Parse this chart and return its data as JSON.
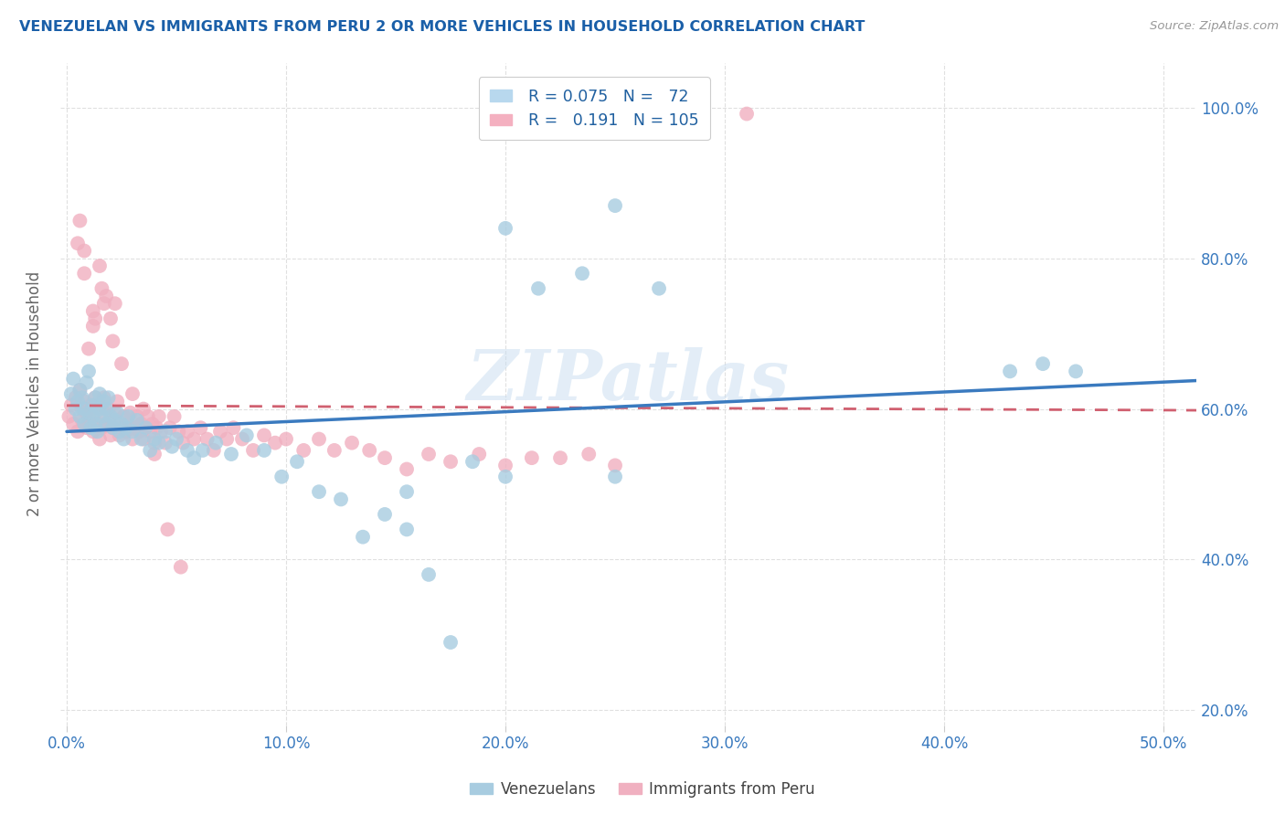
{
  "title": "VENEZUELAN VS IMMIGRANTS FROM PERU 2 OR MORE VEHICLES IN HOUSEHOLD CORRELATION CHART",
  "source": "Source: ZipAtlas.com",
  "ylabel": "2 or more Vehicles in Household",
  "watermark": "ZIPatlas",
  "xlim": [
    -0.003,
    0.515
  ],
  "ylim": [
    0.18,
    1.06
  ],
  "xtick_vals": [
    0.0,
    0.1,
    0.2,
    0.3,
    0.4,
    0.5
  ],
  "xtick_labels": [
    "0.0%",
    "10.0%",
    "20.0%",
    "30.0%",
    "40.0%",
    "50.0%"
  ],
  "ytick_vals": [
    0.2,
    0.4,
    0.6,
    0.8,
    1.0
  ],
  "ytick_labels": [
    "20.0%",
    "40.0%",
    "60.0%",
    "80.0%",
    "100.0%"
  ],
  "R_venezuelan": 0.075,
  "N_venezuelan": 72,
  "R_peru": 0.191,
  "N_peru": 105,
  "blue_scatter_color": "#a8cce0",
  "pink_scatter_color": "#f0b0c0",
  "blue_line_color": "#3a7abf",
  "pink_line_color": "#d06070",
  "title_color": "#1a5fa8",
  "tick_color": "#3a7abf",
  "ylabel_color": "#666666",
  "source_color": "#999999",
  "watermark_color": "#c8ddf0",
  "grid_color": "#e0e0e0",
  "legend_text_color": "#2060a0",
  "venezuelan_x": [
    0.002,
    0.003,
    0.004,
    0.005,
    0.006,
    0.006,
    0.007,
    0.008,
    0.008,
    0.009,
    0.01,
    0.01,
    0.011,
    0.012,
    0.012,
    0.013,
    0.013,
    0.014,
    0.015,
    0.015,
    0.016,
    0.017,
    0.018,
    0.018,
    0.019,
    0.02,
    0.021,
    0.022,
    0.023,
    0.024,
    0.025,
    0.026,
    0.027,
    0.028,
    0.03,
    0.032,
    0.034,
    0.036,
    0.038,
    0.04,
    0.042,
    0.045,
    0.048,
    0.05,
    0.055,
    0.058,
    0.062,
    0.068,
    0.075,
    0.082,
    0.09,
    0.098,
    0.105,
    0.115,
    0.125,
    0.135,
    0.145,
    0.155,
    0.165,
    0.175,
    0.185,
    0.2,
    0.215,
    0.235,
    0.25,
    0.27,
    0.155,
    0.2,
    0.43,
    0.445,
    0.46,
    0.25
  ],
  "venezuelan_y": [
    0.62,
    0.64,
    0.6,
    0.61,
    0.59,
    0.625,
    0.615,
    0.6,
    0.58,
    0.635,
    0.595,
    0.65,
    0.575,
    0.605,
    0.59,
    0.615,
    0.58,
    0.57,
    0.6,
    0.62,
    0.59,
    0.61,
    0.58,
    0.6,
    0.615,
    0.59,
    0.575,
    0.585,
    0.595,
    0.57,
    0.58,
    0.56,
    0.575,
    0.59,
    0.57,
    0.585,
    0.56,
    0.575,
    0.545,
    0.56,
    0.555,
    0.57,
    0.55,
    0.56,
    0.545,
    0.535,
    0.545,
    0.555,
    0.54,
    0.565,
    0.545,
    0.51,
    0.53,
    0.49,
    0.48,
    0.43,
    0.46,
    0.44,
    0.38,
    0.29,
    0.53,
    0.84,
    0.76,
    0.78,
    0.87,
    0.76,
    0.49,
    0.51,
    0.65,
    0.66,
    0.65,
    0.51
  ],
  "peru_x": [
    0.001,
    0.002,
    0.003,
    0.004,
    0.005,
    0.006,
    0.007,
    0.007,
    0.008,
    0.009,
    0.009,
    0.01,
    0.011,
    0.012,
    0.012,
    0.013,
    0.014,
    0.015,
    0.015,
    0.016,
    0.017,
    0.017,
    0.018,
    0.019,
    0.02,
    0.02,
    0.021,
    0.022,
    0.023,
    0.024,
    0.025,
    0.026,
    0.027,
    0.028,
    0.029,
    0.03,
    0.031,
    0.032,
    0.033,
    0.034,
    0.035,
    0.036,
    0.037,
    0.038,
    0.039,
    0.04,
    0.041,
    0.042,
    0.043,
    0.045,
    0.047,
    0.049,
    0.051,
    0.053,
    0.055,
    0.058,
    0.061,
    0.064,
    0.067,
    0.07,
    0.073,
    0.076,
    0.08,
    0.085,
    0.09,
    0.095,
    0.1,
    0.108,
    0.115,
    0.122,
    0.13,
    0.138,
    0.145,
    0.155,
    0.165,
    0.175,
    0.188,
    0.2,
    0.212,
    0.225,
    0.238,
    0.25,
    0.012,
    0.015,
    0.018,
    0.022,
    0.005,
    0.008,
    0.012,
    0.016,
    0.02,
    0.01,
    0.008,
    0.006,
    0.013,
    0.017,
    0.021,
    0.025,
    0.03,
    0.035,
    0.04,
    0.046,
    0.052,
    0.29,
    0.31
  ],
  "peru_y": [
    0.59,
    0.605,
    0.58,
    0.615,
    0.57,
    0.625,
    0.585,
    0.6,
    0.61,
    0.575,
    0.595,
    0.58,
    0.605,
    0.59,
    0.57,
    0.615,
    0.58,
    0.56,
    0.605,
    0.575,
    0.595,
    0.615,
    0.58,
    0.6,
    0.565,
    0.585,
    0.575,
    0.595,
    0.61,
    0.565,
    0.575,
    0.59,
    0.57,
    0.58,
    0.595,
    0.56,
    0.575,
    0.59,
    0.57,
    0.58,
    0.56,
    0.575,
    0.59,
    0.57,
    0.58,
    0.555,
    0.575,
    0.59,
    0.57,
    0.555,
    0.575,
    0.59,
    0.57,
    0.555,
    0.57,
    0.56,
    0.575,
    0.56,
    0.545,
    0.57,
    0.56,
    0.575,
    0.56,
    0.545,
    0.565,
    0.555,
    0.56,
    0.545,
    0.56,
    0.545,
    0.555,
    0.545,
    0.535,
    0.52,
    0.54,
    0.53,
    0.54,
    0.525,
    0.535,
    0.535,
    0.54,
    0.525,
    0.73,
    0.79,
    0.75,
    0.74,
    0.82,
    0.78,
    0.71,
    0.76,
    0.72,
    0.68,
    0.81,
    0.85,
    0.72,
    0.74,
    0.69,
    0.66,
    0.62,
    0.6,
    0.54,
    0.44,
    0.39,
    0.99,
    0.992
  ]
}
